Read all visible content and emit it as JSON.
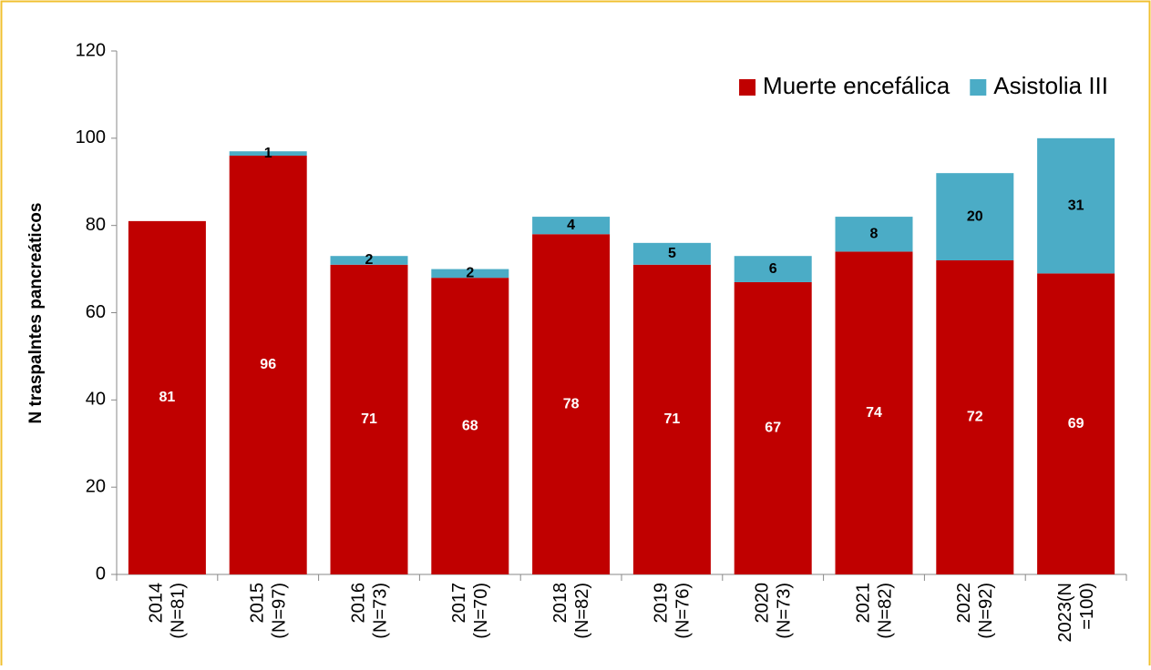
{
  "chart_data": {
    "type": "stacked_bar",
    "y_label": "N traspalntes pancreáticos",
    "categories": [
      [
        "2014",
        "(N=81)"
      ],
      [
        "2015",
        "(N=97)"
      ],
      [
        "2016",
        "(N=73)"
      ],
      [
        "2017",
        "(N=70)"
      ],
      [
        "2018",
        "(N=82)"
      ],
      [
        "2019",
        "(N=76)"
      ],
      [
        "2020",
        "(N=73)"
      ],
      [
        "2021",
        "(N=82)"
      ],
      [
        "2022",
        "(N=92)"
      ],
      [
        "2023(N",
        "=100)"
      ]
    ],
    "series": [
      {
        "name": "Muerte encefálica",
        "color": "#c00000",
        "label_color": "#ffffff",
        "values": [
          81,
          96,
          71,
          68,
          78,
          71,
          67,
          74,
          72,
          69
        ]
      },
      {
        "name": "Asistolia III",
        "color": "#4bacc6",
        "label_color": "#000000",
        "values": [
          null,
          1,
          2,
          2,
          4,
          5,
          6,
          8,
          20,
          31
        ]
      }
    ],
    "ylim": [
      0,
      120
    ],
    "yticks": [
      0,
      20,
      40,
      60,
      80,
      100,
      120
    ],
    "legend": "upper right",
    "grid": false
  }
}
